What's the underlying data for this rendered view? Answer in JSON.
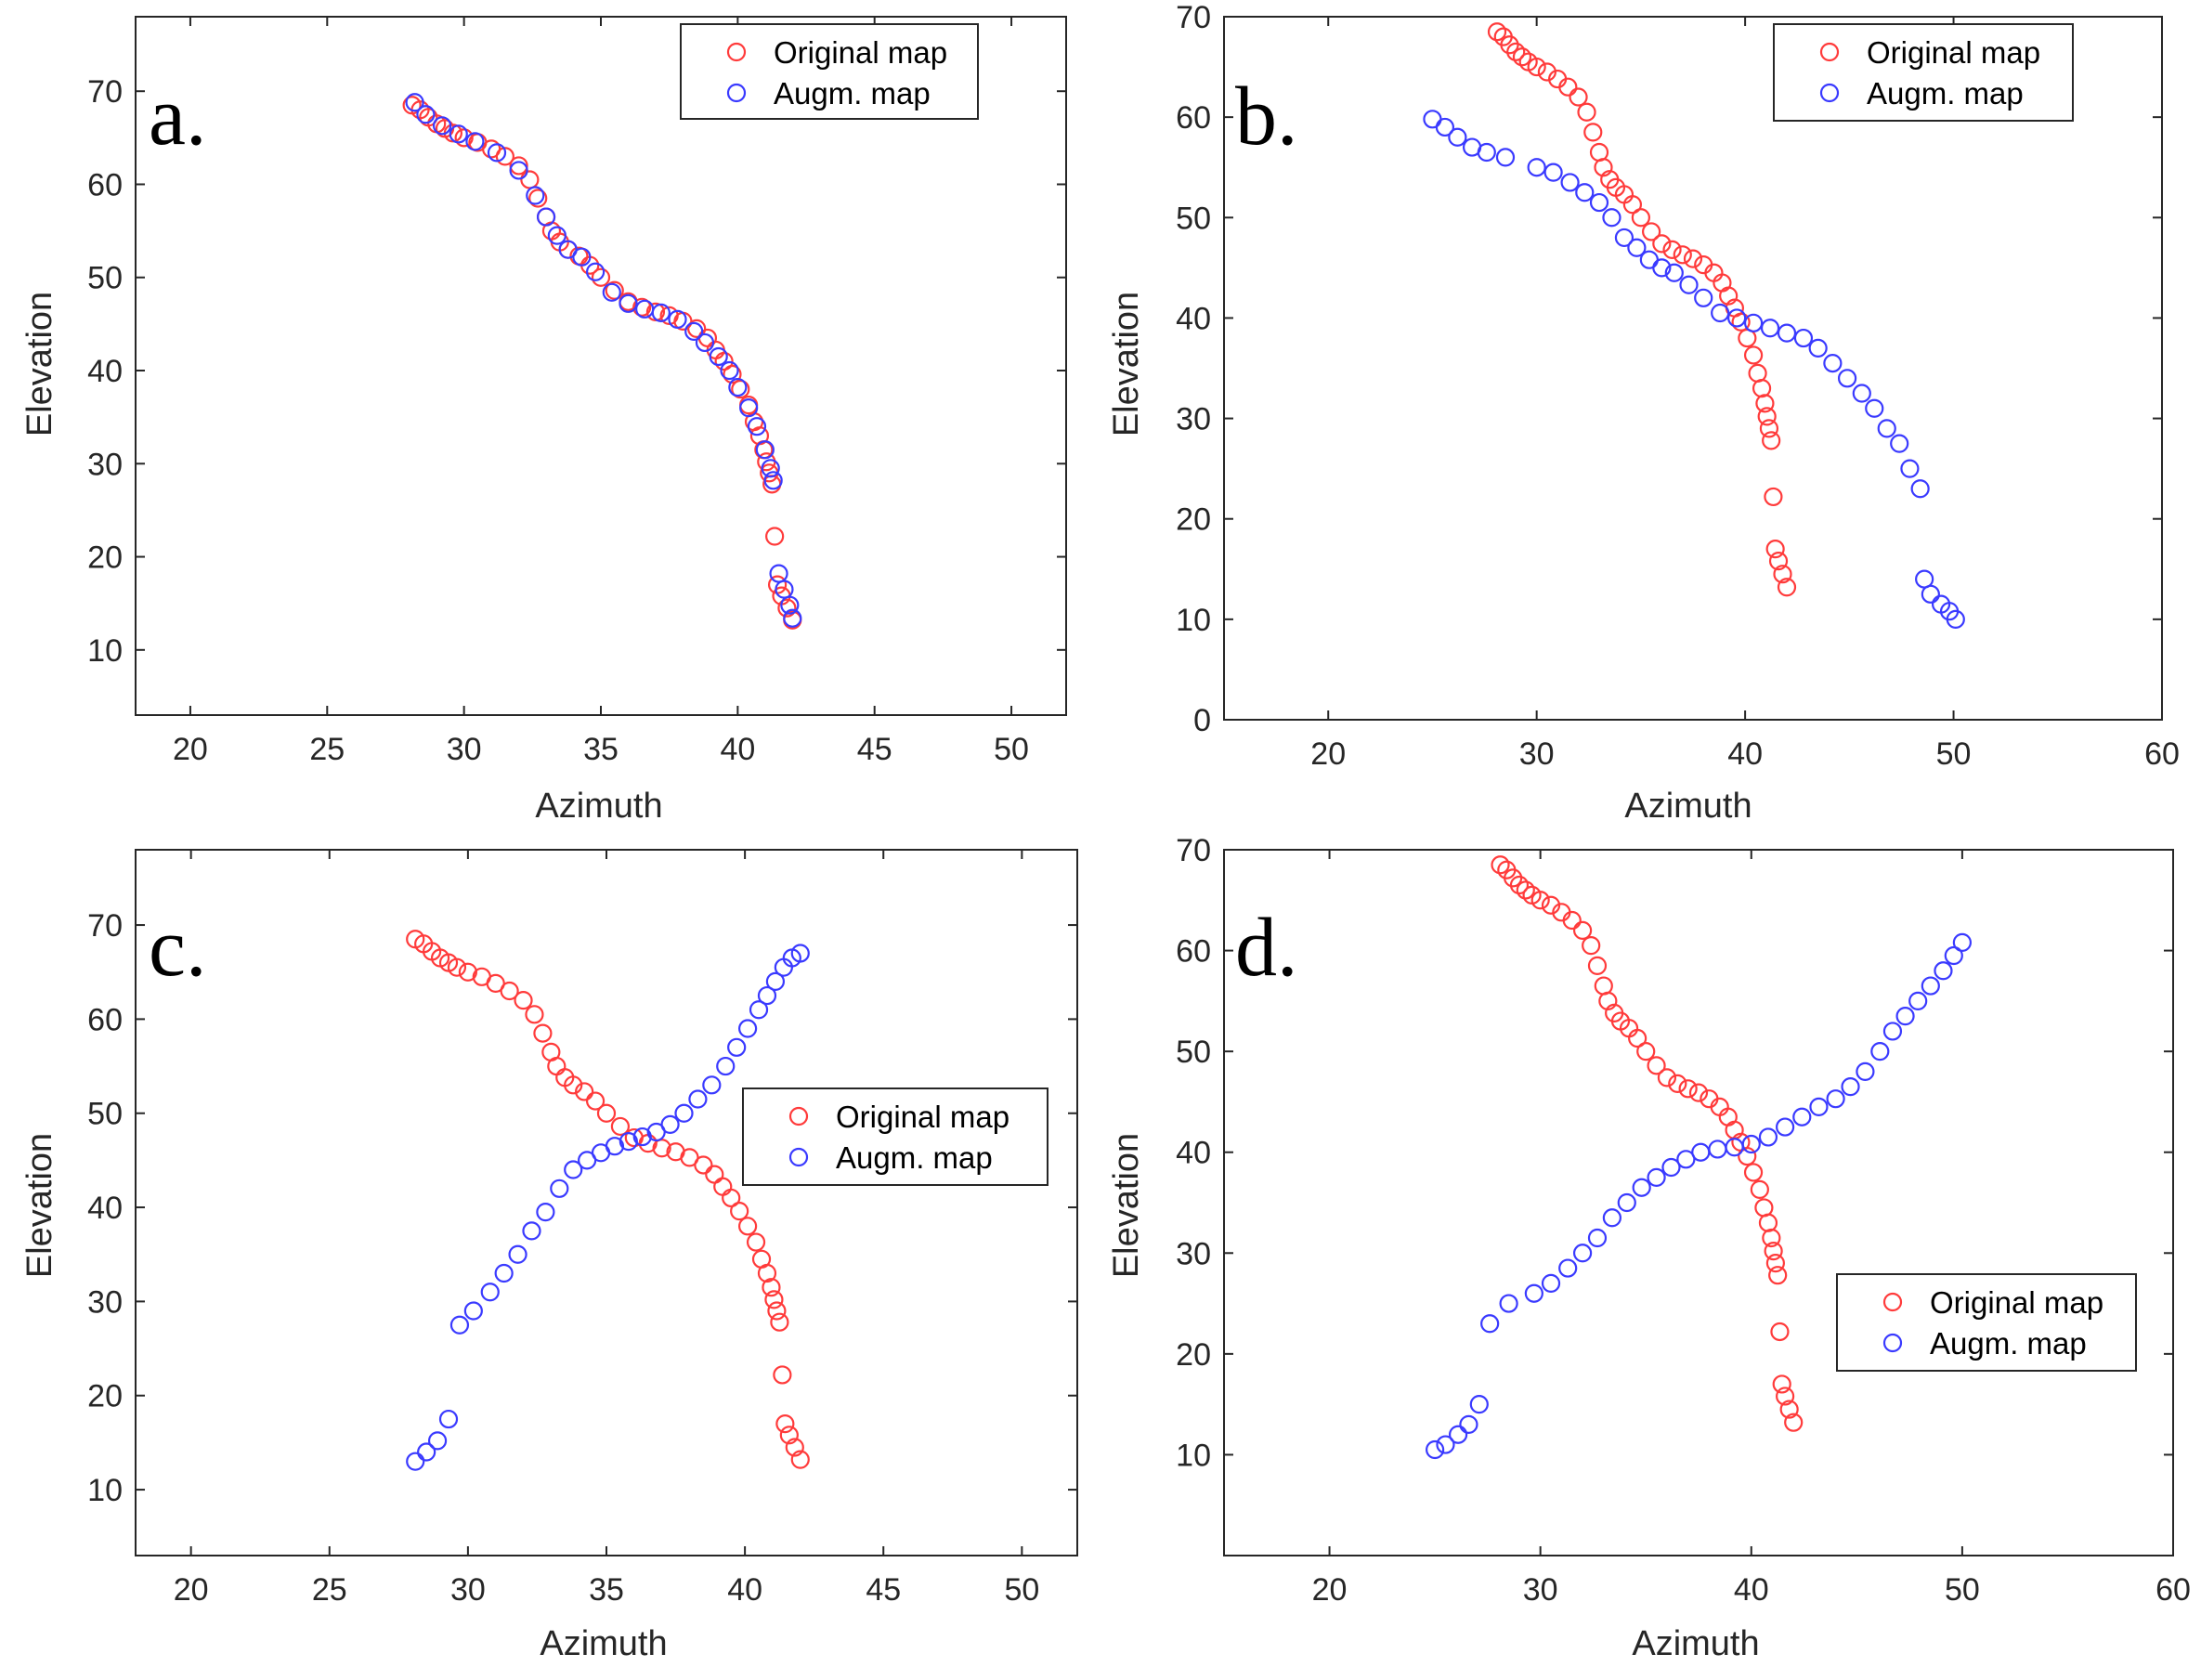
{
  "chart_data": [
    {
      "type": "scatter",
      "panel_label": "a.",
      "xlabel": "Azimuth",
      "ylabel": "Elevation",
      "xlim": [
        18,
        52
      ],
      "ylim": [
        3,
        78
      ],
      "xticks": [
        20,
        25,
        30,
        35,
        40,
        45,
        50
      ],
      "yticks": [
        10,
        20,
        30,
        40,
        50,
        60,
        70
      ],
      "legend": {
        "position": "top-right",
        "entries": [
          "Original map",
          "Augm. map"
        ]
      },
      "series": [
        {
          "name": "Original map",
          "color": "#ff3b3b",
          "x": [
            28.1,
            28.4,
            28.7,
            29.0,
            29.3,
            29.6,
            30.0,
            30.5,
            31.0,
            31.5,
            32.0,
            32.4,
            32.7,
            33.0,
            33.2,
            33.5,
            33.8,
            34.2,
            34.6,
            35.0,
            35.5,
            36.0,
            36.5,
            37.0,
            37.5,
            38.0,
            38.5,
            38.9,
            39.2,
            39.5,
            39.8,
            40.1,
            40.4,
            40.6,
            40.8,
            40.95,
            41.05,
            41.15,
            41.25,
            41.35,
            41.45,
            41.6,
            41.8,
            42.0
          ],
          "y": [
            68.5,
            68.0,
            67.2,
            66.5,
            66.0,
            65.5,
            65.0,
            64.5,
            63.8,
            63.0,
            62.0,
            60.5,
            58.5,
            56.5,
            55.0,
            53.8,
            53.0,
            52.3,
            51.3,
            50.0,
            48.6,
            47.4,
            46.8,
            46.3,
            45.9,
            45.3,
            44.5,
            43.5,
            42.2,
            41.0,
            39.6,
            38.0,
            36.3,
            34.5,
            33.0,
            31.5,
            30.2,
            29.0,
            27.8,
            22.2,
            17.0,
            15.8,
            14.5,
            13.2
          ]
        },
        {
          "name": "Augm. map",
          "color": "#3a3aff",
          "x": [
            28.2,
            28.6,
            29.2,
            29.8,
            30.4,
            31.2,
            32.0,
            32.6,
            33.0,
            33.4,
            33.8,
            34.3,
            34.8,
            35.4,
            36.0,
            36.6,
            37.2,
            37.8,
            38.4,
            38.8,
            39.3,
            39.7,
            40.0,
            40.4,
            40.7,
            41.0,
            41.2,
            41.3,
            41.5,
            41.7,
            41.9,
            42.0
          ],
          "y": [
            68.8,
            67.5,
            66.3,
            65.4,
            64.6,
            63.4,
            61.5,
            58.8,
            56.5,
            54.5,
            53.0,
            52.2,
            50.6,
            48.4,
            47.2,
            46.6,
            46.2,
            45.5,
            44.2,
            43.0,
            41.5,
            40.0,
            38.2,
            36.0,
            34.0,
            31.5,
            29.5,
            28.2,
            18.2,
            16.5,
            14.8,
            13.4
          ]
        }
      ]
    },
    {
      "type": "scatter",
      "panel_label": "b.",
      "xlabel": "Azimuth",
      "ylabel": "Elevation",
      "xlim": [
        15,
        60
      ],
      "ylim": [
        0,
        70
      ],
      "xticks": [
        20,
        30,
        40,
        50,
        60
      ],
      "yticks": [
        0,
        10,
        20,
        30,
        40,
        50,
        60,
        70
      ],
      "legend": {
        "position": "top-right",
        "entries": [
          "Original map",
          "Augm. map"
        ]
      },
      "series": [
        {
          "name": "Original map",
          "color": "#ff3b3b",
          "x": [
            28.1,
            28.4,
            28.7,
            29.0,
            29.3,
            29.6,
            30.0,
            30.5,
            31.0,
            31.5,
            32.0,
            32.4,
            32.7,
            33.0,
            33.2,
            33.5,
            33.8,
            34.2,
            34.6,
            35.0,
            35.5,
            36.0,
            36.5,
            37.0,
            37.5,
            38.0,
            38.5,
            38.9,
            39.2,
            39.5,
            39.8,
            40.1,
            40.4,
            40.6,
            40.8,
            40.95,
            41.05,
            41.15,
            41.25,
            41.35,
            41.45,
            41.6,
            41.8,
            42.0
          ],
          "y": [
            68.5,
            68.0,
            67.2,
            66.5,
            66.0,
            65.5,
            65.0,
            64.5,
            63.8,
            63.0,
            62.0,
            60.5,
            58.5,
            56.5,
            55.0,
            53.8,
            53.0,
            52.3,
            51.3,
            50.0,
            48.6,
            47.4,
            46.8,
            46.3,
            45.9,
            45.3,
            44.5,
            43.5,
            42.2,
            41.0,
            39.6,
            38.0,
            36.3,
            34.5,
            33.0,
            31.5,
            30.2,
            29.0,
            27.8,
            22.2,
            17.0,
            15.8,
            14.5,
            13.2
          ]
        },
        {
          "name": "Augm. map",
          "color": "#3a3aff",
          "x": [
            25.0,
            25.6,
            26.2,
            26.9,
            27.6,
            28.5,
            30.0,
            30.8,
            31.6,
            32.3,
            33.0,
            33.6,
            34.2,
            34.8,
            35.4,
            36.0,
            36.6,
            37.3,
            38.0,
            38.8,
            39.6,
            40.4,
            41.2,
            42.0,
            42.8,
            43.5,
            44.2,
            44.9,
            45.6,
            46.2,
            46.8,
            47.4,
            47.9,
            48.4,
            48.6,
            48.9,
            49.4,
            49.8,
            50.1
          ],
          "y": [
            59.8,
            59.0,
            58.0,
            57.0,
            56.5,
            56.0,
            55.0,
            54.5,
            53.5,
            52.5,
            51.5,
            50.0,
            48.0,
            47.0,
            45.8,
            45.0,
            44.5,
            43.3,
            42.0,
            40.5,
            40.0,
            39.5,
            39.0,
            38.5,
            38.0,
            37.0,
            35.5,
            34.0,
            32.5,
            31.0,
            29.0,
            27.5,
            25.0,
            23.0,
            14.0,
            12.5,
            11.5,
            10.8,
            10.0
          ]
        }
      ]
    },
    {
      "type": "scatter",
      "panel_label": "c.",
      "xlabel": "Azimuth",
      "ylabel": "Elevation",
      "xlim": [
        18,
        52
      ],
      "ylim": [
        3,
        78
      ],
      "xticks": [
        20,
        25,
        30,
        35,
        40,
        45,
        50
      ],
      "yticks": [
        10,
        20,
        30,
        40,
        50,
        60,
        70
      ],
      "legend": {
        "position": "center-right",
        "entries": [
          "Original map",
          "Augm. map"
        ]
      },
      "series": [
        {
          "name": "Original map",
          "color": "#ff3b3b",
          "x": [
            28.1,
            28.4,
            28.7,
            29.0,
            29.3,
            29.6,
            30.0,
            30.5,
            31.0,
            31.5,
            32.0,
            32.4,
            32.7,
            33.0,
            33.2,
            33.5,
            33.8,
            34.2,
            34.6,
            35.0,
            35.5,
            36.0,
            36.5,
            37.0,
            37.5,
            38.0,
            38.5,
            38.9,
            39.2,
            39.5,
            39.8,
            40.1,
            40.4,
            40.6,
            40.8,
            40.95,
            41.05,
            41.15,
            41.25,
            41.35,
            41.45,
            41.6,
            41.8,
            42.0
          ],
          "y": [
            68.5,
            68.0,
            67.2,
            66.5,
            66.0,
            65.5,
            65.0,
            64.5,
            63.8,
            63.0,
            62.0,
            60.5,
            58.5,
            56.5,
            55.0,
            53.8,
            53.0,
            52.3,
            51.3,
            50.0,
            48.6,
            47.4,
            46.8,
            46.3,
            45.9,
            45.3,
            44.5,
            43.5,
            42.2,
            41.0,
            39.6,
            38.0,
            36.3,
            34.5,
            33.0,
            31.5,
            30.2,
            29.0,
            27.8,
            22.2,
            17.0,
            15.8,
            14.5,
            13.2
          ]
        },
        {
          "name": "Augm. map",
          "color": "#3a3aff",
          "x": [
            28.1,
            28.5,
            28.9,
            29.3,
            29.7,
            30.2,
            30.8,
            31.3,
            31.8,
            32.3,
            32.8,
            33.3,
            33.8,
            34.3,
            34.8,
            35.3,
            35.8,
            36.3,
            36.8,
            37.3,
            37.8,
            38.3,
            38.8,
            39.3,
            39.7,
            40.1,
            40.5,
            40.8,
            41.1,
            41.4,
            41.7,
            42.0
          ],
          "y": [
            13.0,
            14.0,
            15.2,
            17.5,
            27.5,
            29.0,
            31.0,
            33.0,
            35.0,
            37.5,
            39.5,
            42.0,
            44.0,
            45.0,
            45.8,
            46.5,
            47.0,
            47.5,
            48.0,
            48.8,
            50.0,
            51.5,
            53.0,
            55.0,
            57.0,
            59.0,
            61.0,
            62.5,
            64.0,
            65.5,
            66.5,
            67.0
          ]
        }
      ]
    },
    {
      "type": "scatter",
      "panel_label": "d.",
      "xlabel": "Azimuth",
      "ylabel": "Elevation",
      "xlim": [
        15,
        60
      ],
      "ylim": [
        0,
        70
      ],
      "xticks": [
        20,
        30,
        40,
        50,
        60
      ],
      "yticks": [
        10,
        20,
        30,
        40,
        50,
        60,
        70
      ],
      "legend": {
        "position": "lower-right",
        "entries": [
          "Original map",
          "Augm. map"
        ]
      },
      "series": [
        {
          "name": "Original map",
          "color": "#ff3b3b",
          "x": [
            28.1,
            28.4,
            28.7,
            29.0,
            29.3,
            29.6,
            30.0,
            30.5,
            31.0,
            31.5,
            32.0,
            32.4,
            32.7,
            33.0,
            33.2,
            33.5,
            33.8,
            34.2,
            34.6,
            35.0,
            35.5,
            36.0,
            36.5,
            37.0,
            37.5,
            38.0,
            38.5,
            38.9,
            39.2,
            39.5,
            39.8,
            40.1,
            40.4,
            40.6,
            40.8,
            40.95,
            41.05,
            41.15,
            41.25,
            41.35,
            41.45,
            41.6,
            41.8,
            42.0
          ],
          "y": [
            68.5,
            68.0,
            67.2,
            66.5,
            66.0,
            65.5,
            65.0,
            64.5,
            63.8,
            63.0,
            62.0,
            60.5,
            58.5,
            56.5,
            55.0,
            53.8,
            53.0,
            52.3,
            51.3,
            50.0,
            48.6,
            47.4,
            46.8,
            46.3,
            45.9,
            45.3,
            44.5,
            43.5,
            42.2,
            41.0,
            39.6,
            38.0,
            36.3,
            34.5,
            33.0,
            31.5,
            30.2,
            29.0,
            27.8,
            22.2,
            17.0,
            15.8,
            14.5,
            13.2
          ]
        },
        {
          "name": "Augm. map",
          "color": "#3a3aff",
          "x": [
            25.0,
            25.5,
            26.1,
            26.6,
            27.1,
            27.6,
            28.5,
            29.7,
            30.5,
            31.3,
            32.0,
            32.7,
            33.4,
            34.1,
            34.8,
            35.5,
            36.2,
            36.9,
            37.6,
            38.4,
            39.2,
            40.0,
            40.8,
            41.6,
            42.4,
            43.2,
            44.0,
            44.7,
            45.4,
            46.1,
            46.7,
            47.3,
            47.9,
            48.5,
            49.1,
            49.6,
            50.0
          ],
          "y": [
            10.5,
            11.0,
            12.0,
            13.0,
            15.0,
            23.0,
            25.0,
            26.0,
            27.0,
            28.5,
            30.0,
            31.5,
            33.5,
            35.0,
            36.5,
            37.5,
            38.5,
            39.3,
            40.0,
            40.3,
            40.5,
            40.8,
            41.5,
            42.5,
            43.5,
            44.5,
            45.3,
            46.5,
            48.0,
            50.0,
            52.0,
            53.5,
            55.0,
            56.5,
            58.0,
            59.5,
            60.8
          ]
        }
      ]
    }
  ]
}
